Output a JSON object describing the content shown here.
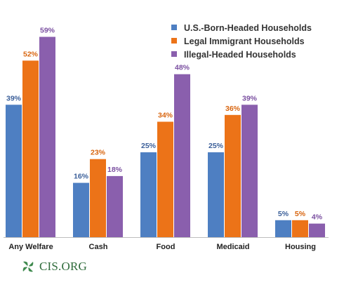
{
  "chart_data": {
    "type": "bar",
    "categories": [
      "Any Welfare",
      "Cash",
      "Food",
      "Medicaid",
      "Housing"
    ],
    "series": [
      {
        "name": "U.S.-Born-Headed Households",
        "values": [
          39,
          16,
          25,
          25,
          5
        ],
        "labels": [
          "39%",
          "16%",
          "25%",
          "25%",
          "5%"
        ],
        "color": "#4e7fc2",
        "label_color": "#3b5f99"
      },
      {
        "name": "Legal Immigrant Households",
        "values": [
          52,
          23,
          34,
          36,
          5
        ],
        "labels": [
          "52%",
          "23%",
          "34%",
          "36%",
          "5%"
        ],
        "color": "#ec7318",
        "label_color": "#d8650f"
      },
      {
        "name": "Illegal-Headed Households",
        "values": [
          59,
          18,
          48,
          39,
          4
        ],
        "labels": [
          "59%",
          "18%",
          "48%",
          "39%",
          "4%"
        ],
        "color": "#8a5fad",
        "label_color": "#7a4fa0"
      }
    ],
    "ylim": [
      0,
      62
    ],
    "legend_position": "top-right",
    "grid": false
  },
  "logo": {
    "text": "CIS.ORG",
    "icon": "cis-leaf-logo-icon",
    "color": "#2e6b3a"
  }
}
